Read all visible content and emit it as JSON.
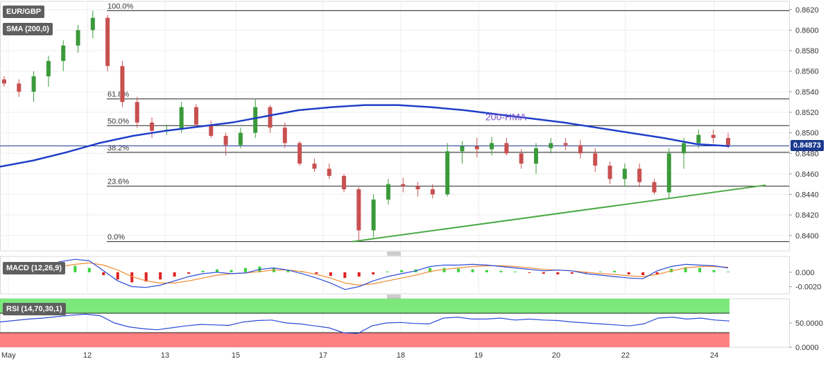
{
  "chart_data": {
    "type": "candlestick",
    "instrument": "EUR/GBP",
    "x_labels": [
      "May",
      "12",
      "13",
      "15",
      "17",
      "18",
      "19",
      "20",
      "22",
      "24"
    ],
    "price_axis": {
      "ticks": [
        "0.8620",
        "0.8600",
        "0.8580",
        "0.8560",
        "0.8540",
        "0.8520",
        "0.8500",
        "0.8480",
        "0.8460",
        "0.8440",
        "0.8420",
        "0.8400"
      ],
      "ylim": [
        0.8385,
        0.8628
      ]
    },
    "current_price": "0.84873",
    "indicator_sma": "SMA (200,0)",
    "hma_label": "200-HMA",
    "fibonacci": [
      {
        "label": "100.0%",
        "value": 0.8619
      },
      {
        "label": "61.8%",
        "value": 0.8533
      },
      {
        "label": "50.0%",
        "value": 0.8507
      },
      {
        "label": "38.2%",
        "value": 0.8481
      },
      {
        "label": "23.6%",
        "value": 0.8448
      },
      {
        "label": "0.0%",
        "value": 0.8394
      }
    ],
    "support_line": {
      "from": [
        0.8394
      ],
      "to": [
        0.8449
      ]
    },
    "hma_series": [
      0.8467,
      0.8473,
      0.8481,
      0.849,
      0.8497,
      0.8502,
      0.8506,
      0.851,
      0.8516,
      0.8522,
      0.8525,
      0.8527,
      0.8527,
      0.8525,
      0.8522,
      0.8518,
      0.8514,
      0.851,
      0.8505,
      0.85,
      0.8495,
      0.8489,
      0.8487
    ],
    "candles": [
      [
        0.8552,
        0.8555,
        0.8545,
        0.8548
      ],
      [
        0.8548,
        0.8552,
        0.8535,
        0.854
      ],
      [
        0.854,
        0.856,
        0.853,
        0.8555
      ],
      [
        0.8555,
        0.8575,
        0.8545,
        0.857
      ],
      [
        0.857,
        0.859,
        0.856,
        0.8585
      ],
      [
        0.8585,
        0.8605,
        0.8578,
        0.86
      ],
      [
        0.86,
        0.8619,
        0.8592,
        0.8612
      ],
      [
        0.8612,
        0.8615,
        0.856,
        0.8565
      ],
      [
        0.8565,
        0.857,
        0.8525,
        0.853
      ],
      [
        0.853,
        0.8535,
        0.8505,
        0.851
      ],
      [
        0.851,
        0.8515,
        0.8495,
        0.8502
      ],
      [
        0.8502,
        0.8508,
        0.8498,
        0.8503
      ],
      [
        0.8503,
        0.853,
        0.85,
        0.8525
      ],
      [
        0.8525,
        0.8528,
        0.8505,
        0.8508
      ],
      [
        0.8508,
        0.8512,
        0.8495,
        0.8497
      ],
      [
        0.8497,
        0.85,
        0.8478,
        0.8488
      ],
      [
        0.8488,
        0.8505,
        0.8485,
        0.85
      ],
      [
        0.85,
        0.8533,
        0.8495,
        0.8525
      ],
      [
        0.8525,
        0.8527,
        0.85,
        0.8505
      ],
      [
        0.8505,
        0.851,
        0.8485,
        0.849
      ],
      [
        0.849,
        0.8492,
        0.8468,
        0.847
      ],
      [
        0.847,
        0.8475,
        0.8462,
        0.8465
      ],
      [
        0.8465,
        0.847,
        0.8455,
        0.8458
      ],
      [
        0.8458,
        0.846,
        0.8442,
        0.8445
      ],
      [
        0.8445,
        0.8447,
        0.8394,
        0.8405
      ],
      [
        0.8405,
        0.844,
        0.8398,
        0.8435
      ],
      [
        0.8435,
        0.8455,
        0.843,
        0.845
      ],
      [
        0.845,
        0.8456,
        0.8442,
        0.8448
      ],
      [
        0.8448,
        0.8452,
        0.8438,
        0.8445
      ],
      [
        0.8445,
        0.845,
        0.8436,
        0.844
      ],
      [
        0.844,
        0.849,
        0.8438,
        0.8482
      ],
      [
        0.8482,
        0.8492,
        0.847,
        0.8487
      ],
      [
        0.8487,
        0.8495,
        0.8476,
        0.8484
      ],
      [
        0.8484,
        0.8496,
        0.8478,
        0.849
      ],
      [
        0.849,
        0.8495,
        0.8478,
        0.848
      ],
      [
        0.848,
        0.8484,
        0.8465,
        0.847
      ],
      [
        0.847,
        0.849,
        0.846,
        0.8485
      ],
      [
        0.8485,
        0.8495,
        0.848,
        0.849
      ],
      [
        0.849,
        0.8495,
        0.8483,
        0.8488
      ],
      [
        0.8488,
        0.8493,
        0.8475,
        0.848
      ],
      [
        0.848,
        0.8485,
        0.8462,
        0.8468
      ],
      [
        0.8468,
        0.8472,
        0.845,
        0.8455
      ],
      [
        0.8455,
        0.847,
        0.8448,
        0.8465
      ],
      [
        0.8465,
        0.847,
        0.8447,
        0.8452
      ],
      [
        0.8452,
        0.8455,
        0.844,
        0.8442
      ],
      [
        0.8442,
        0.8485,
        0.8436,
        0.848
      ],
      [
        0.848,
        0.8495,
        0.8465,
        0.849
      ],
      [
        0.849,
        0.8503,
        0.8485,
        0.8498
      ],
      [
        0.8498,
        0.8503,
        0.849,
        0.8495
      ],
      [
        0.8495,
        0.85,
        0.8485,
        0.8488
      ]
    ],
    "macd": {
      "label": "MACD (12,26,9)",
      "ticks": [
        "0.000",
        "-0.0020"
      ],
      "ylim": [
        -0.003,
        0.0022
      ],
      "histogram": [
        0.0004,
        0.0006,
        0.0008,
        0.001,
        0.0012,
        0.0009,
        0.0006,
        -0.0004,
        -0.001,
        -0.0014,
        -0.0013,
        -0.001,
        -0.0006,
        -0.0002,
        0.0002,
        0.0004,
        0.0003,
        0.0006,
        0.0008,
        0.0006,
        0.0003,
        0.0001,
        -0.0002,
        -0.0005,
        -0.0008,
        -0.0006,
        -0.0003,
        0.0001,
        0.0003,
        0.0004,
        0.0006,
        0.0006,
        0.0005,
        0.0004,
        0.0003,
        0.0002,
        0.0001,
        -0.0001,
        -0.0002,
        -0.0003,
        -0.0002,
        -0.0001,
        0.0001,
        0.0002,
        -0.0003,
        -0.0004,
        -0.0003,
        0.0005,
        0.0007,
        0.0006,
        0.0003,
        0.0001
      ],
      "macd_line": [
        -0.0001,
        0.0002,
        0.0006,
        0.001,
        0.0015,
        0.0018,
        0.0016,
        0.0002,
        -0.0012,
        -0.002,
        -0.0021,
        -0.0018,
        -0.0012,
        -0.0006,
        -0.0002,
        0.0,
        -0.0002,
        -0.0001,
        0.0004,
        0.0006,
        0.0003,
        -0.0002,
        -0.0008,
        -0.0015,
        -0.0024,
        -0.002,
        -0.0012,
        -0.0006,
        -0.0002,
        0.0002,
        0.0008,
        0.001,
        0.001,
        0.0011,
        0.001,
        0.0008,
        0.0006,
        0.0004,
        0.0002,
        0.0003,
        0.0002,
        -0.0002,
        -0.0004,
        -0.0006,
        -0.0008,
        -0.0009,
        0.0002,
        0.0008,
        0.0011,
        0.001,
        0.0009,
        0.0006
      ],
      "signal_line": [
        -0.0002,
        0.0,
        0.0002,
        0.0005,
        0.0008,
        0.0011,
        0.0013,
        0.001,
        0.0003,
        -0.0006,
        -0.0012,
        -0.0015,
        -0.0015,
        -0.0012,
        -0.0008,
        -0.0004,
        -0.0002,
        -0.0001,
        0.0001,
        0.0003,
        0.0003,
        0.0001,
        -0.0003,
        -0.0008,
        -0.0015,
        -0.0018,
        -0.0016,
        -0.0012,
        -0.0008,
        -0.0004,
        0.0001,
        0.0004,
        0.0006,
        0.0008,
        0.0009,
        0.0009,
        0.0008,
        0.0006,
        0.0004,
        0.0003,
        0.0002,
        0.0,
        -0.0002,
        -0.0003,
        -0.0005,
        -0.0006,
        -0.0003,
        0.0002,
        0.0006,
        0.0008,
        0.0008,
        0.0007
      ]
    },
    "rsi": {
      "label": "RSI (14,70,30,1)",
      "ticks": [
        "50.0000",
        "0.0000"
      ],
      "ylim": [
        0,
        100
      ],
      "overbought": 70,
      "oversold": 30,
      "values": [
        52,
        55,
        58,
        60,
        63,
        66,
        68,
        65,
        50,
        42,
        38,
        36,
        40,
        44,
        47,
        46,
        45,
        52,
        55,
        56,
        50,
        48,
        44,
        40,
        30,
        28,
        44,
        50,
        51,
        49,
        48,
        60,
        62,
        58,
        58,
        60,
        56,
        58,
        56,
        55,
        52,
        50,
        48,
        46,
        44,
        48,
        60,
        62,
        58,
        60,
        56,
        54
      ]
    },
    "colors": {
      "bull": "#3a9a3a",
      "bear": "#c85050",
      "hma": "#1f3ec8",
      "support": "#4aaa44",
      "macd": "#2a49d8",
      "signal": "#f08a30",
      "rsi": "#2a49d8",
      "overbought": "#7ce87c",
      "oversold": "#ff8080"
    }
  },
  "badges": {
    "pair": "EUR/GBP",
    "sma": "SMA (200,0)",
    "macd": "MACD (12,26,9)",
    "rsi": "RSI (14,70,30,1)"
  }
}
